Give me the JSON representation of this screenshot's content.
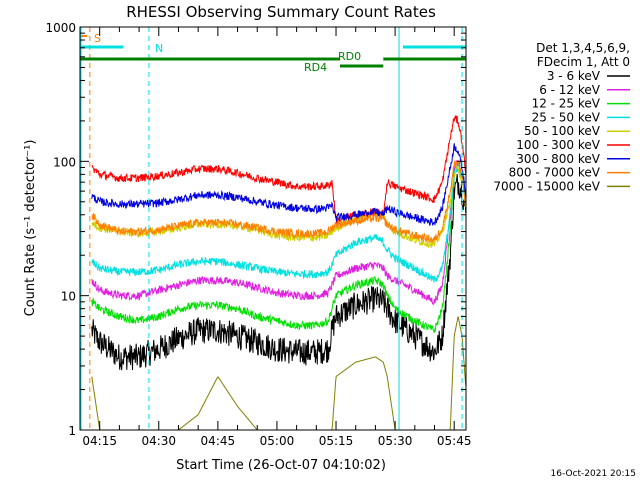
{
  "chart_data": {
    "type": "line",
    "title": "RHESSI Observing Summary Count Rates",
    "xlabel": "Start Time (26-Oct-07 04:10:02)",
    "ylabel": "Count Rate (s⁻¹ detector⁻¹)",
    "yscale": "log",
    "ylim": [
      1,
      1000
    ],
    "xlim_minutes_after_0410": [
      0,
      98
    ],
    "x_tick_labels": [
      "04:15",
      "04:30",
      "04:45",
      "05:00",
      "05:15",
      "05:30",
      "05:45"
    ],
    "x_tick_minutes": [
      5,
      20,
      35,
      50,
      65,
      80,
      95
    ],
    "y_tick_labels": [
      "1",
      "10",
      "100",
      "1000"
    ],
    "y_tick_values": [
      1,
      10,
      100,
      1000
    ],
    "grid": false,
    "legend_header": [
      "Det 1,3,4,5,6,9,",
      "FDecim 1, Att 0"
    ],
    "legend_placement": "right",
    "timestamp": "16-Oct-2021 20:15",
    "flags": {
      "saa_label": "S",
      "night_label": "N",
      "rd0_label": "RD0",
      "rd4_label": "RD4",
      "night_solid_minutes": [
        [
          0,
          11
        ],
        [
          82,
          98
        ]
      ],
      "rd0_minutes": [
        [
          66,
          77
        ]
      ],
      "rd4_minutes": [
        [
          0,
          66
        ],
        [
          77,
          98
        ]
      ]
    },
    "markers": {
      "cyan_dashed_minutes": [
        17.5,
        97
      ],
      "cyan_solid_minutes": [
        0,
        81
      ],
      "orange_dashed_minutes": [
        2.5
      ]
    },
    "x_minutes": [
      3,
      5,
      10,
      15,
      20,
      25,
      30,
      35,
      40,
      45,
      50,
      55,
      60,
      63,
      64,
      65,
      70,
      75,
      77,
      78,
      80,
      85,
      90,
      92,
      94,
      95,
      96,
      97,
      98
    ],
    "series": [
      {
        "name": "3 - 6 keV",
        "color": "#000000",
        "values": [
          5.5,
          4.5,
          3.5,
          3.5,
          4.0,
          4.8,
          5.5,
          5.5,
          5.0,
          4.5,
          4.0,
          3.8,
          3.8,
          4.0,
          5.5,
          7.0,
          8.5,
          9.5,
          9.0,
          8.0,
          6.5,
          5.0,
          3.8,
          5.0,
          20,
          60,
          70,
          60,
          40
        ]
      },
      {
        "name": "6 - 12 keV",
        "color": "#e020e0",
        "values": [
          13,
          11,
          10,
          10,
          11,
          12,
          13,
          13,
          12.5,
          11.5,
          10.5,
          10,
          10,
          10.5,
          12,
          14,
          16,
          17,
          16,
          14,
          13,
          11,
          9,
          12,
          40,
          90,
          100,
          80,
          55
        ]
      },
      {
        "name": "12 - 25 keV",
        "color": "#00e000",
        "values": [
          9,
          8,
          7,
          6.5,
          7,
          8,
          8.5,
          8.5,
          8,
          7,
          6.5,
          6,
          6,
          6.5,
          8,
          10,
          12,
          13,
          12,
          10,
          8,
          6.5,
          5.5,
          8,
          30,
          80,
          95,
          80,
          50
        ]
      },
      {
        "name": "25 - 50 keV",
        "color": "#00e0e0",
        "values": [
          18,
          16,
          15,
          15,
          15.5,
          17,
          18,
          18,
          17,
          16,
          15,
          14.5,
          14.5,
          15,
          17,
          20,
          25,
          27,
          25,
          22,
          19,
          16,
          13,
          16,
          40,
          80,
          90,
          75,
          50
        ]
      },
      {
        "name": "50 - 100 keV",
        "color": "#d0d000",
        "values": [
          35,
          32,
          30,
          29,
          30,
          32,
          34,
          34,
          33,
          31,
          28,
          27,
          27,
          28,
          30,
          32,
          38,
          42,
          40,
          34,
          30,
          26,
          24,
          30,
          50,
          80,
          90,
          70,
          45
        ]
      },
      {
        "name": "100 - 300 keV",
        "color": "#ff0000",
        "values": [
          90,
          80,
          75,
          75,
          78,
          82,
          88,
          88,
          82,
          75,
          70,
          65,
          65,
          66,
          70,
          36,
          40,
          42,
          40,
          70,
          65,
          58,
          52,
          70,
          150,
          210,
          200,
          140,
          80
        ]
      },
      {
        "name": "300 - 800 keV",
        "color": "#0000e0",
        "values": [
          55,
          50,
          48,
          48,
          49,
          52,
          56,
          56,
          54,
          50,
          47,
          45,
          44,
          45,
          47,
          38,
          40,
          42,
          40,
          45,
          42,
          38,
          35,
          45,
          90,
          130,
          120,
          90,
          55
        ]
      },
      {
        "name": "800 - 7000 keV",
        "color": "#ff8000",
        "values": [
          40,
          34,
          30,
          30,
          31,
          33,
          35,
          35,
          34,
          32,
          30,
          29,
          29,
          30,
          32,
          34,
          36,
          38,
          37,
          34,
          31,
          28,
          26,
          32,
          60,
          95,
          100,
          75,
          45
        ]
      },
      {
        "name": "7000 - 15000 keV",
        "color": "#808000",
        "values": [
          2.5,
          1,
          1,
          1,
          1,
          1,
          1.3,
          2.5,
          1.5,
          1,
          1,
          1,
          1,
          1,
          1,
          2.5,
          3.2,
          3.5,
          3.2,
          2.5,
          1,
          1,
          1,
          1,
          1,
          5,
          7,
          5,
          2
        ]
      }
    ]
  }
}
